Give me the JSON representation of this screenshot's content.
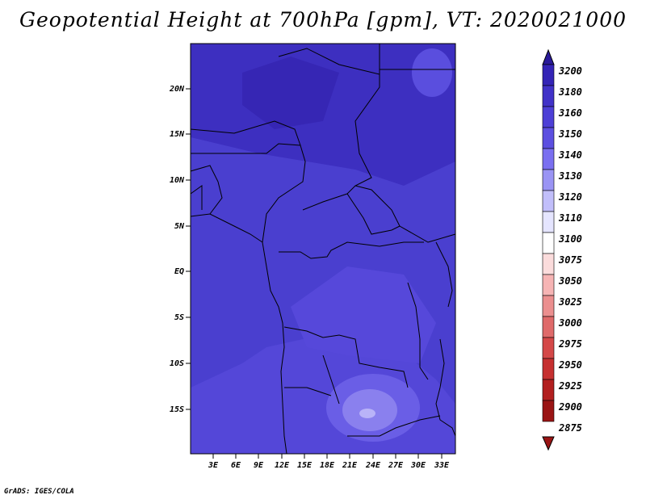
{
  "title": "Geopotential Height at 700hPa [gpm], VT: 2020021000",
  "credit": "GrADS: IGES/COLA",
  "map": {
    "lat_labels": [
      "20N",
      "15N",
      "10N",
      "5N",
      "EQ",
      "5S",
      "10S",
      "15S"
    ],
    "lon_labels": [
      "3E",
      "6E",
      "9E",
      "12E",
      "15E",
      "18E",
      "21E",
      "24E",
      "27E",
      "30E",
      "33E"
    ],
    "dominant_color": "#4a3fcf",
    "feature": "lighter lows over southern Africa near 24E 15S"
  },
  "colorbar": {
    "levels": [
      "3200",
      "3180",
      "3160",
      "3150",
      "3140",
      "3130",
      "3120",
      "3110",
      "3100",
      "3075",
      "3050",
      "3025",
      "3000",
      "2975",
      "2950",
      "2925",
      "2900",
      "2875"
    ],
    "colors": [
      "#2a1a9a",
      "#3424b6",
      "#4132c8",
      "#4d3fd6",
      "#5c4fe0",
      "#7a6ff0",
      "#9a94f4",
      "#c1befa",
      "#e5e5ff",
      "#ffffff",
      "#fbdcdc",
      "#f6b4b4",
      "#eb8f8f",
      "#df6a6a",
      "#d44848",
      "#c63030",
      "#b21f1f",
      "#9a1414"
    ]
  }
}
